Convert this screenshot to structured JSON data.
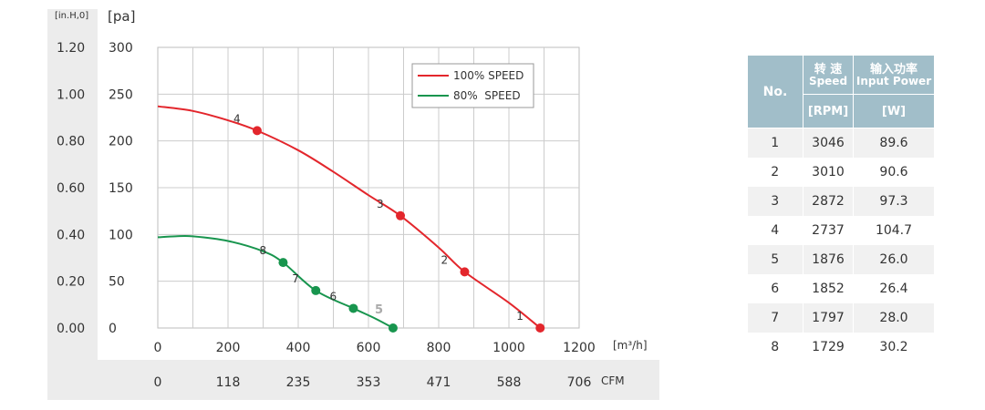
{
  "chart_data": {
    "type": "line",
    "axis_units": {
      "left_outer": "[in.H,0]",
      "left_inner": "[pa]",
      "x_primary": "[m³/h]",
      "x_secondary": "CFM"
    },
    "y_pa_ticks": [
      "300",
      "250",
      "200",
      "150",
      "100",
      "50",
      "0"
    ],
    "y_inh2o_ticks": [
      "1.20",
      "1.00",
      "0.80",
      "0.60",
      "0.40",
      "0.20",
      "0.00"
    ],
    "x_m3h_ticks": [
      "0",
      "200",
      "400",
      "600",
      "800",
      "1000",
      "1200"
    ],
    "x_cfm_ticks": [
      "0",
      "118",
      "235",
      "353",
      "471",
      "588",
      "706"
    ],
    "xlim": [
      0,
      1200
    ],
    "ylim": [
      0,
      300
    ],
    "grid": true,
    "legend_position": "top-right",
    "series": [
      {
        "name": "100% SPEED",
        "color": "#e3262c",
        "curve": [
          [
            0,
            237
          ],
          [
            100,
            232
          ],
          [
            200,
            222
          ],
          [
            283,
            211
          ],
          [
            400,
            190
          ],
          [
            500,
            167
          ],
          [
            600,
            142
          ],
          [
            691,
            120
          ],
          [
            800,
            86
          ],
          [
            874,
            60
          ],
          [
            1000,
            27
          ],
          [
            1089,
            0
          ]
        ],
        "points": [
          {
            "label": "1",
            "x": 1089,
            "y": 0
          },
          {
            "label": "2",
            "x": 874,
            "y": 60
          },
          {
            "label": "3",
            "x": 691,
            "y": 120
          },
          {
            "label": "4",
            "x": 283,
            "y": 211
          }
        ]
      },
      {
        "name": "80%  SPEED",
        "color": "#18954e",
        "curve": [
          [
            0,
            97
          ],
          [
            50,
            98
          ],
          [
            100,
            98
          ],
          [
            200,
            93
          ],
          [
            300,
            82
          ],
          [
            357,
            70
          ],
          [
            450,
            40
          ],
          [
            557,
            21
          ],
          [
            620,
            10
          ],
          [
            670,
            0
          ]
        ],
        "points": [
          {
            "label": "5",
            "x": 670,
            "y": 0
          },
          {
            "label": "6",
            "x": 557,
            "y": 21
          },
          {
            "label": "7",
            "x": 450,
            "y": 40
          },
          {
            "label": "8",
            "x": 357,
            "y": 70
          }
        ]
      }
    ]
  },
  "table": {
    "headers": {
      "no": "No.",
      "speed_cn": "转 速",
      "speed_en": "Speed",
      "power_cn": "输入功率",
      "power_en": "Input Power",
      "speed_unit": "[RPM]",
      "power_unit": "[W]"
    },
    "rows": [
      {
        "no": "1",
        "rpm": "3046",
        "watt": "89.6"
      },
      {
        "no": "2",
        "rpm": "3010",
        "watt": "90.6"
      },
      {
        "no": "3",
        "rpm": "2872",
        "watt": "97.3"
      },
      {
        "no": "4",
        "rpm": "2737",
        "watt": "104.7"
      },
      {
        "no": "5",
        "rpm": "1876",
        "watt": "26.0"
      },
      {
        "no": "6",
        "rpm": "1852",
        "watt": "26.4"
      },
      {
        "no": "7",
        "rpm": "1797",
        "watt": "28.0"
      },
      {
        "no": "8",
        "rpm": "1729",
        "watt": "30.2"
      }
    ]
  }
}
